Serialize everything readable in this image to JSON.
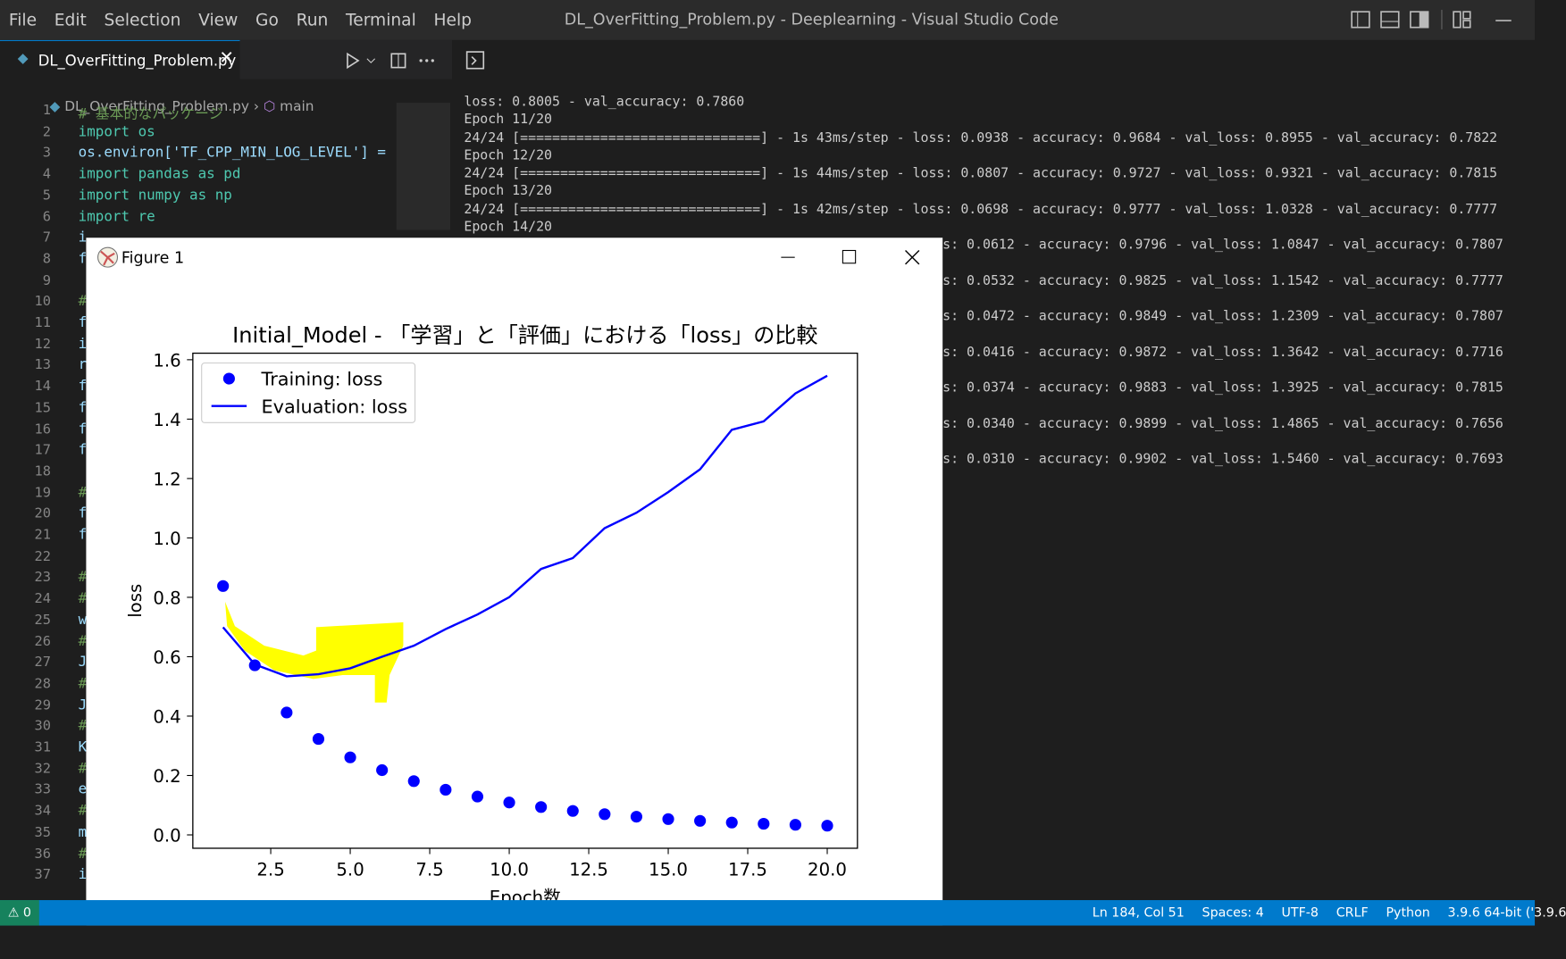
{
  "menu": [
    "File",
    "Edit",
    "Selection",
    "View",
    "Go",
    "Run",
    "Terminal",
    "Help"
  ],
  "window_title": "DL_OverFitting_Problem.py - Deeplearning - Visual Studio Code",
  "tab": {
    "label": "DL_OverFitting_Problem.py"
  },
  "breadcrumb": [
    "DL_OverFitting_Problem.py",
    "main"
  ],
  "editor_lines": [
    {
      "number": 1,
      "code": "# 基本的なパッケージ"
    },
    {
      "number": 2,
      "code": "import os"
    },
    {
      "number": 3,
      "code": "os.environ['TF_CPP_MIN_LOG_LEVEL'] ="
    },
    {
      "number": 4,
      "code": "import pandas as pd"
    },
    {
      "number": 5,
      "code": "import numpy as np"
    },
    {
      "number": 6,
      "code": "import re"
    },
    {
      "number": 7,
      "code": "i"
    },
    {
      "number": 8,
      "code": "f"
    },
    {
      "number": 9
    },
    {
      "number": 10,
      "code": "#"
    },
    {
      "number": 11,
      "code": "f"
    },
    {
      "number": 12,
      "code": "i"
    },
    {
      "number": 13,
      "code": "r"
    },
    {
      "number": 14,
      "code": "f"
    },
    {
      "number": 15,
      "code": "f"
    },
    {
      "number": 16,
      "code": "f"
    },
    {
      "number": 17,
      "code": "f"
    },
    {
      "number": 18
    },
    {
      "number": 19,
      "code": "#"
    },
    {
      "number": 20,
      "code": "f"
    },
    {
      "number": 21,
      "code": "f"
    },
    {
      "number": 22
    },
    {
      "number": 23,
      "code": "#"
    },
    {
      "number": 24,
      "code": "#"
    },
    {
      "number": 25,
      "code": "w"
    },
    {
      "number": 26,
      "code": "#"
    },
    {
      "number": 27,
      "code": "J"
    },
    {
      "number": 28,
      "code": "#"
    },
    {
      "number": 29,
      "code": "J"
    },
    {
      "number": 30,
      "code": "#"
    },
    {
      "number": 31,
      "code": "K"
    },
    {
      "number": 32,
      "code": "#"
    },
    {
      "number": 33,
      "code": "e"
    },
    {
      "number": 34,
      "code": "#"
    },
    {
      "number": 35,
      "code": "m"
    },
    {
      "number": 36,
      "code": "#"
    },
    {
      "number": 37,
      "code": "i"
    }
  ],
  "terminal_lines": [
    "loss: 0.8005 - val_accuracy: 0.7860",
    "Epoch 11/20",
    "24/24 [==============================] - 1s 43ms/step - loss: 0.0938 - accuracy: 0.9684 - val_loss: 0.8955 - val_accuracy: 0.7822",
    "Epoch 12/20",
    "24/24 [==============================] - 1s 44ms/step - loss: 0.0807 - accuracy: 0.9727 - val_loss: 0.9321 - val_accuracy: 0.7815",
    "Epoch 13/20",
    "24/24 [==============================] - 1s 42ms/step - loss: 0.0698 - accuracy: 0.9777 - val_loss: 1.0328 - val_accuracy: 0.7777",
    "Epoch 14/20"
  ],
  "terminal_partial_lines": [
    "s: 0.0612 - accuracy: 0.9796 - val_loss: 1.0847 - val_accuracy: 0.7807",
    "s: 0.0532 - accuracy: 0.9825 - val_loss: 1.1542 - val_accuracy: 0.7777",
    "s: 0.0472 - accuracy: 0.9849 - val_loss: 1.2309 - val_accuracy: 0.7807",
    "s: 0.0416 - accuracy: 0.9872 - val_loss: 1.3642 - val_accuracy: 0.7716",
    "s: 0.0374 - accuracy: 0.9883 - val_loss: 1.3925 - val_accuracy: 0.7815",
    "s: 0.0340 - accuracy: 0.9899 - val_loss: 1.4865 - val_accuracy: 0.7656",
    "s: 0.0310 - accuracy: 0.9902 - val_loss: 1.5460 - val_accuracy: 0.7693"
  ],
  "figure_window": {
    "title": "Figure 1"
  },
  "chart_data": {
    "type": "line",
    "title": "Initial_Model - 「学習」と「評価」における「loss」の比較",
    "x_label": "Epoch数",
    "y_label": "loss",
    "x": [
      1,
      2,
      3,
      4,
      5,
      6,
      7,
      8,
      9,
      10,
      11,
      12,
      13,
      14,
      15,
      16,
      17,
      18,
      19,
      20
    ],
    "series": [
      {
        "name": "Training: loss",
        "color": "#0000ff",
        "style": "dots",
        "values": [
          0.838,
          0.571,
          0.412,
          0.323,
          0.261,
          0.218,
          0.181,
          0.152,
          0.129,
          0.109,
          0.0938,
          0.0807,
          0.0698,
          0.0612,
          0.0532,
          0.0472,
          0.0416,
          0.0374,
          0.034,
          0.031
        ]
      },
      {
        "name": "Evaluation: loss",
        "color": "#0000ff",
        "style": "line",
        "values": [
          0.699,
          0.574,
          0.534,
          0.541,
          0.561,
          0.6,
          0.637,
          0.693,
          0.742,
          0.8005,
          0.8955,
          0.9321,
          1.0328,
          1.0847,
          1.1542,
          1.2309,
          1.3642,
          1.3925,
          1.4865,
          1.546
        ]
      }
    ],
    "xlim": [
      0.05,
      20.95
    ],
    "xticks": [
      2.5,
      {
        "value": 5,
        "label": "5.0"
      },
      7.5,
      {
        "value": 10,
        "label": "10.0"
      },
      12.5,
      {
        "value": 15,
        "label": "15.0"
      },
      17.5,
      {
        "value": 20,
        "label": "20.0"
      }
    ],
    "ylim": [
      -0.045,
      1.622
    ],
    "yticks": [
      {
        "value": 0,
        "label": "0.0"
      },
      0.2,
      0.4,
      0.6,
      0.8,
      {
        "value": 1,
        "label": "1.0"
      },
      1.2,
      1.4,
      1.6
    ],
    "legend": "upper left",
    "grid": false
  },
  "status_bar": {
    "problems": 0,
    "items": [
      "Ln 184, Col 51",
      "Spaces: 4",
      "UTF-8",
      "CRLF",
      "Python",
      "3.9.6 64-bit ('3.9.6"
    ]
  }
}
